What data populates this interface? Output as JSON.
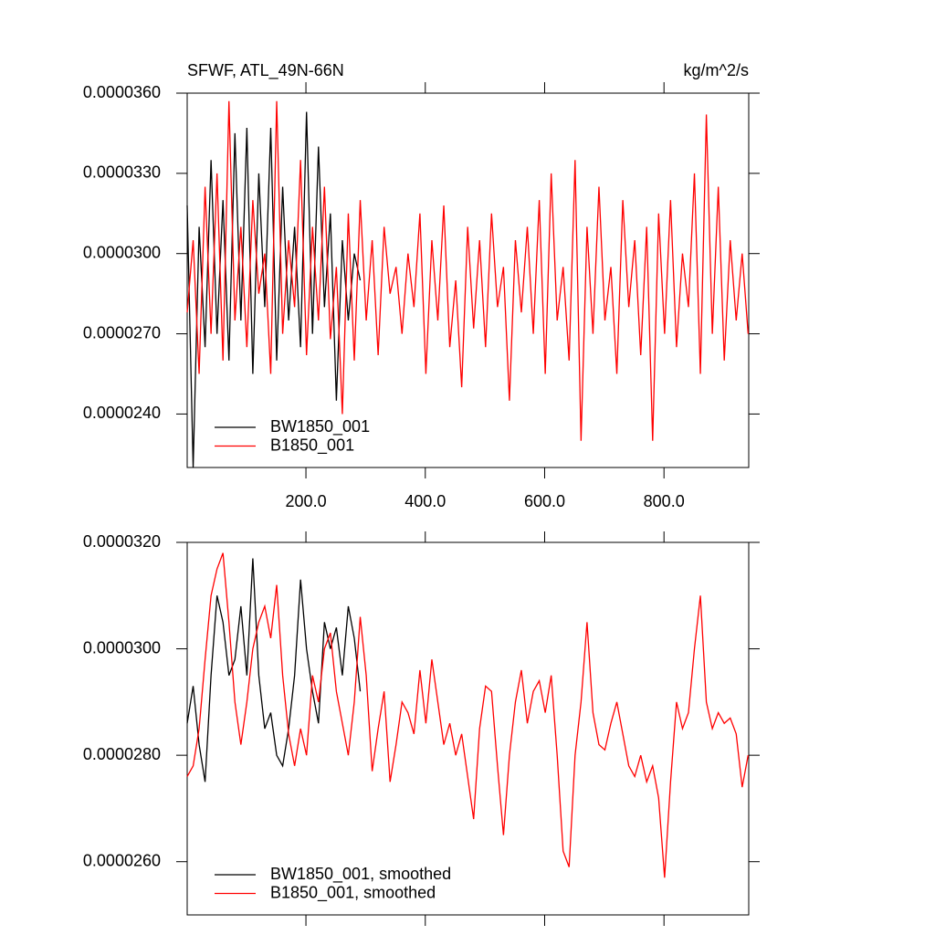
{
  "chart_data": [
    {
      "type": "line",
      "title": "SFWF, ATL_49N-66N",
      "units": "kg/m^2/s",
      "xlim": [
        1,
        942
      ],
      "ylim": [
        2.2e-05,
        3.6e-05
      ],
      "xticks": [
        {
          "value": 200,
          "label": "200.0"
        },
        {
          "value": 400,
          "label": "400.0"
        },
        {
          "value": 600,
          "label": "600.0"
        },
        {
          "value": 800,
          "label": "800.0"
        }
      ],
      "yticks": [
        {
          "value": 2.4e-05,
          "label": "0.0000240"
        },
        {
          "value": 2.7e-05,
          "label": "0.0000270"
        },
        {
          "value": 3e-05,
          "label": "0.0000300"
        },
        {
          "value": 3.3e-05,
          "label": "0.0000330"
        },
        {
          "value": 3.6e-05,
          "label": "0.0000360"
        }
      ],
      "legend": "lower left",
      "series": [
        {
          "name": "BW1850_001",
          "color": "#000000",
          "x": [
            1,
            11,
            21,
            31,
            41,
            51,
            61,
            71,
            81,
            91,
            101,
            111,
            121,
            131,
            141,
            151,
            161,
            171,
            181,
            191,
            201,
            211,
            221,
            231,
            241,
            251,
            261,
            271,
            281,
            291
          ],
          "values": [
            3.18e-05,
            2.2e-05,
            3.1e-05,
            2.65e-05,
            3.35e-05,
            2.7e-05,
            3.2e-05,
            2.6e-05,
            3.45e-05,
            2.75e-05,
            3.47e-05,
            2.55e-05,
            3.3e-05,
            2.8e-05,
            3.47e-05,
            2.6e-05,
            3.25e-05,
            2.75e-05,
            3.1e-05,
            2.65e-05,
            3.53e-05,
            2.7e-05,
            3.4e-05,
            2.8e-05,
            3.15e-05,
            2.45e-05,
            3.05e-05,
            2.75e-05,
            3e-05,
            2.9e-05
          ]
        },
        {
          "name": "B1850_001",
          "color": "#ff0000",
          "x": [
            1,
            11,
            21,
            31,
            41,
            51,
            61,
            71,
            81,
            91,
            101,
            111,
            121,
            131,
            141,
            151,
            161,
            171,
            181,
            191,
            201,
            211,
            221,
            231,
            241,
            251,
            261,
            271,
            281,
            291,
            301,
            311,
            321,
            331,
            341,
            351,
            361,
            371,
            381,
            391,
            401,
            411,
            421,
            431,
            441,
            451,
            461,
            471,
            481,
            491,
            501,
            511,
            521,
            531,
            541,
            551,
            561,
            571,
            581,
            591,
            601,
            611,
            621,
            631,
            641,
            651,
            661,
            671,
            681,
            691,
            701,
            711,
            721,
            731,
            741,
            751,
            761,
            771,
            781,
            791,
            801,
            811,
            821,
            831,
            841,
            851,
            861,
            871,
            881,
            891,
            901,
            911,
            921,
            931,
            941
          ],
          "values": [
            2.78e-05,
            3.05e-05,
            2.55e-05,
            3.25e-05,
            2.7e-05,
            3.3e-05,
            2.6e-05,
            3.57e-05,
            2.75e-05,
            3.1e-05,
            2.65e-05,
            3.2e-05,
            2.85e-05,
            3e-05,
            2.55e-05,
            3.57e-05,
            2.7e-05,
            3.05e-05,
            2.8e-05,
            3.35e-05,
            2.62e-05,
            3.1e-05,
            2.75e-05,
            3.25e-05,
            2.68e-05,
            2.95e-05,
            2.4e-05,
            3.15e-05,
            2.6e-05,
            3.2e-05,
            2.75e-05,
            3.05e-05,
            2.62e-05,
            3.1e-05,
            2.85e-05,
            2.95e-05,
            2.7e-05,
            3e-05,
            2.8e-05,
            3.15e-05,
            2.55e-05,
            3.05e-05,
            2.75e-05,
            3.18e-05,
            2.65e-05,
            2.9e-05,
            2.5e-05,
            3.1e-05,
            2.72e-05,
            3.05e-05,
            2.65e-05,
            3.15e-05,
            2.8e-05,
            2.95e-05,
            2.45e-05,
            3.05e-05,
            2.78e-05,
            3.1e-05,
            2.7e-05,
            3.2e-05,
            2.55e-05,
            3.3e-05,
            2.75e-05,
            2.95e-05,
            2.6e-05,
            3.35e-05,
            2.3e-05,
            3.1e-05,
            2.7e-05,
            3.25e-05,
            2.75e-05,
            2.95e-05,
            2.55e-05,
            3.2e-05,
            2.8e-05,
            3.05e-05,
            2.62e-05,
            3.1e-05,
            2.3e-05,
            3.15e-05,
            2.7e-05,
            3.2e-05,
            2.65e-05,
            3e-05,
            2.8e-05,
            3.3e-05,
            2.55e-05,
            3.52e-05,
            2.7e-05,
            3.25e-05,
            2.6e-05,
            3.05e-05,
            2.75e-05,
            3e-05,
            2.7e-05
          ]
        }
      ]
    },
    {
      "type": "line",
      "xlim": [
        1,
        942
      ],
      "ylim": [
        2.5e-05,
        3.2e-05
      ],
      "yticks": [
        {
          "value": 2.6e-05,
          "label": "0.0000260"
        },
        {
          "value": 2.8e-05,
          "label": "0.0000280"
        },
        {
          "value": 3e-05,
          "label": "0.0000300"
        },
        {
          "value": 3.2e-05,
          "label": "0.0000320"
        }
      ],
      "legend": "lower left",
      "series": [
        {
          "name": "BW1850_001, smoothed",
          "color": "#000000",
          "x": [
            1,
            11,
            21,
            31,
            41,
            51,
            61,
            71,
            81,
            91,
            101,
            111,
            121,
            131,
            141,
            151,
            161,
            171,
            181,
            191,
            201,
            211,
            221,
            231,
            241,
            251,
            261,
            271,
            281,
            291
          ],
          "values": [
            2.86e-05,
            2.93e-05,
            2.82e-05,
            2.75e-05,
            2.95e-05,
            3.1e-05,
            3.05e-05,
            2.95e-05,
            2.98e-05,
            3.08e-05,
            2.95e-05,
            3.17e-05,
            2.95e-05,
            2.85e-05,
            2.88e-05,
            2.8e-05,
            2.78e-05,
            2.85e-05,
            2.95e-05,
            3.13e-05,
            3e-05,
            2.92e-05,
            2.86e-05,
            3.05e-05,
            3e-05,
            3.04e-05,
            2.95e-05,
            3.08e-05,
            3.02e-05,
            2.92e-05
          ]
        },
        {
          "name": "B1850_001, smoothed",
          "color": "#ff0000",
          "x": [
            1,
            11,
            21,
            31,
            41,
            51,
            61,
            71,
            81,
            91,
            101,
            111,
            121,
            131,
            141,
            151,
            161,
            171,
            181,
            191,
            201,
            211,
            221,
            231,
            241,
            251,
            261,
            271,
            281,
            291,
            301,
            311,
            321,
            331,
            341,
            351,
            361,
            371,
            381,
            391,
            401,
            411,
            421,
            431,
            441,
            451,
            461,
            471,
            481,
            491,
            501,
            511,
            521,
            531,
            541,
            551,
            561,
            571,
            581,
            591,
            601,
            611,
            621,
            631,
            641,
            651,
            661,
            671,
            681,
            691,
            701,
            711,
            721,
            731,
            741,
            751,
            761,
            771,
            781,
            791,
            801,
            811,
            821,
            831,
            841,
            851,
            861,
            871,
            881,
            891,
            901,
            911,
            921,
            931,
            941
          ],
          "values": [
            2.76e-05,
            2.78e-05,
            2.85e-05,
            2.98e-05,
            3.1e-05,
            3.15e-05,
            3.18e-05,
            3.05e-05,
            2.9e-05,
            2.82e-05,
            2.9e-05,
            3e-05,
            3.05e-05,
            3.08e-05,
            3.02e-05,
            3.12e-05,
            2.95e-05,
            2.84e-05,
            2.78e-05,
            2.85e-05,
            2.8e-05,
            2.95e-05,
            2.9e-05,
            3e-05,
            3.03e-05,
            2.92e-05,
            2.86e-05,
            2.8e-05,
            2.9e-05,
            3.06e-05,
            2.95e-05,
            2.77e-05,
            2.85e-05,
            2.92e-05,
            2.75e-05,
            2.82e-05,
            2.9e-05,
            2.88e-05,
            2.84e-05,
            2.96e-05,
            2.86e-05,
            2.98e-05,
            2.9e-05,
            2.82e-05,
            2.86e-05,
            2.8e-05,
            2.84e-05,
            2.76e-05,
            2.68e-05,
            2.85e-05,
            2.93e-05,
            2.92e-05,
            2.78e-05,
            2.65e-05,
            2.8e-05,
            2.9e-05,
            2.96e-05,
            2.86e-05,
            2.92e-05,
            2.94e-05,
            2.88e-05,
            2.95e-05,
            2.8e-05,
            2.62e-05,
            2.59e-05,
            2.8e-05,
            2.9e-05,
            3.05e-05,
            2.88e-05,
            2.82e-05,
            2.81e-05,
            2.86e-05,
            2.9e-05,
            2.84e-05,
            2.78e-05,
            2.76e-05,
            2.8e-05,
            2.75e-05,
            2.78e-05,
            2.72e-05,
            2.57e-05,
            2.75e-05,
            2.9e-05,
            2.85e-05,
            2.88e-05,
            3e-05,
            3.1e-05,
            2.9e-05,
            2.85e-05,
            2.88e-05,
            2.86e-05,
            2.87e-05,
            2.84e-05,
            2.74e-05,
            2.8e-05
          ]
        }
      ]
    }
  ]
}
